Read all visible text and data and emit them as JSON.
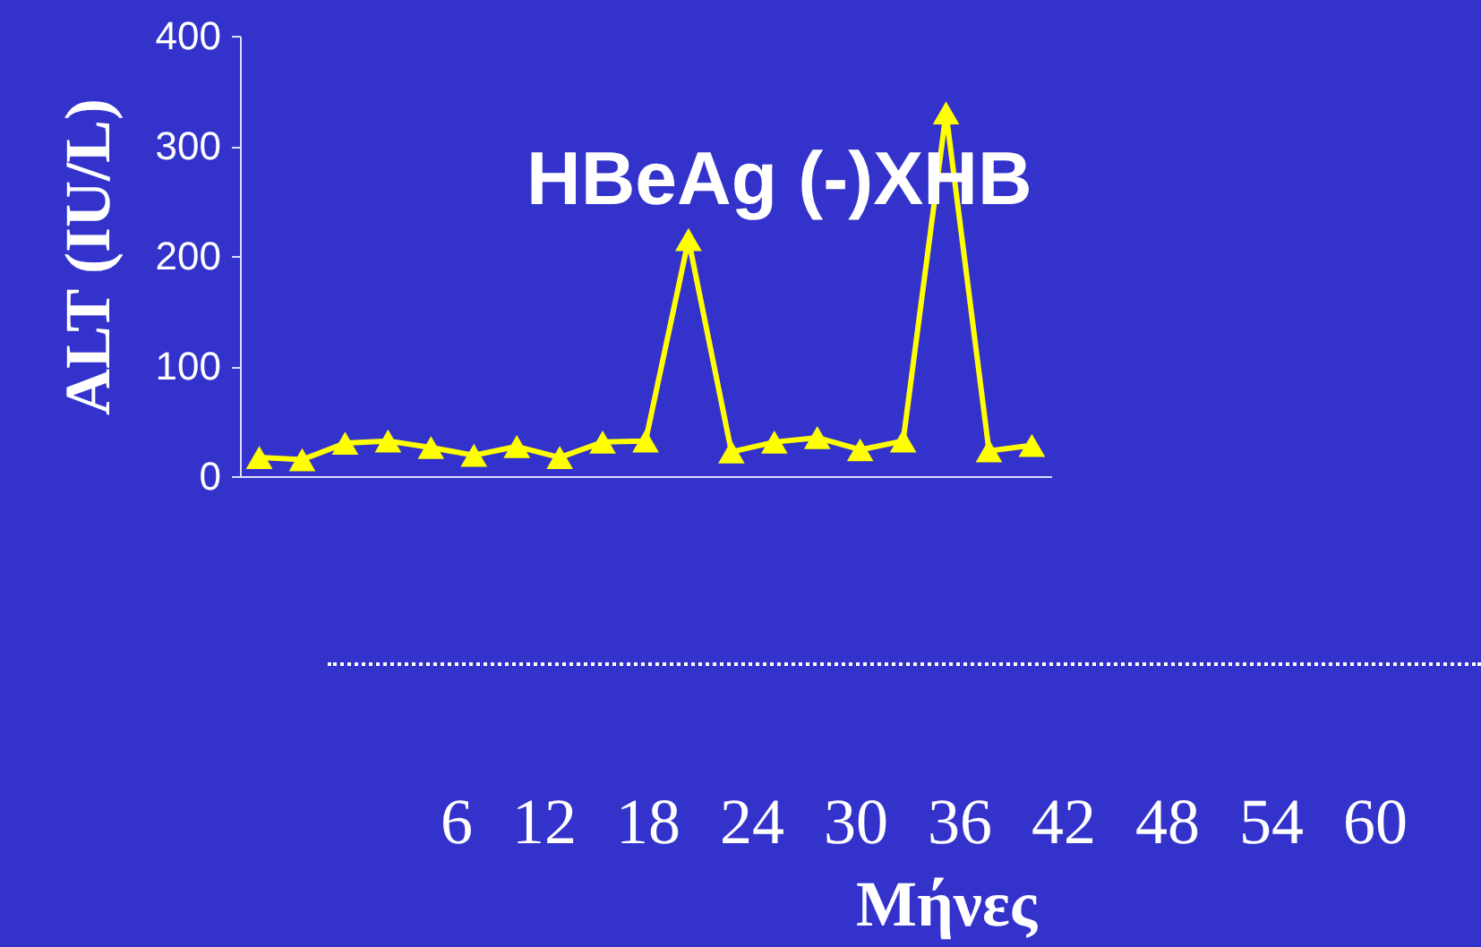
{
  "chart_data": {
    "type": "line",
    "title": "HBeAg (-)ΧΗΒ",
    "ylabel": "ALT (IU/L)",
    "annotations": [
      "6  12  18  24  30  36  42  48  54  60",
      "Μήνες"
    ],
    "categories": [
      null,
      null,
      null,
      null,
      null,
      null,
      null,
      null,
      null,
      null,
      null,
      null,
      null,
      null,
      null,
      null,
      null,
      null,
      null
    ],
    "series": [
      {
        "color": "#ffff00",
        "values": [
          17,
          15,
          30,
          32,
          26,
          19,
          27,
          17,
          31,
          32,
          215,
          22,
          31,
          35,
          24,
          32,
          330,
          23,
          28
        ]
      }
    ],
    "ylim": [
      0,
      400
    ],
    "yticks": [
      0,
      100,
      200,
      300,
      400
    ],
    "grid": false,
    "legend": false,
    "marker": "triangle",
    "line_style": "solid"
  }
}
